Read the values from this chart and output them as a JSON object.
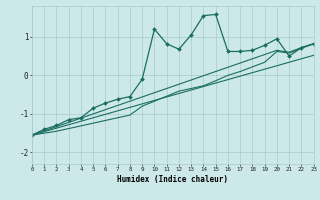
{
  "xlabel": "Humidex (Indice chaleur)",
  "bg_color": "#cce8e8",
  "grid_color": "#aacaca",
  "line_color": "#1a6e60",
  "x_data": [
    0,
    1,
    2,
    3,
    4,
    5,
    6,
    7,
    8,
    9,
    10,
    11,
    12,
    13,
    14,
    15,
    16,
    17,
    18,
    19,
    20,
    21,
    22,
    23
  ],
  "y_curve": [
    -1.55,
    -1.4,
    -1.3,
    -1.15,
    -1.1,
    -0.85,
    -0.72,
    -0.62,
    -0.55,
    -0.1,
    1.2,
    0.82,
    0.68,
    1.05,
    1.55,
    1.58,
    0.62,
    0.62,
    0.65,
    0.78,
    0.95,
    0.5,
    0.72,
    0.82
  ],
  "y_line1": [
    -1.55,
    -1.46,
    -1.37,
    -1.28,
    -1.19,
    -1.1,
    -1.01,
    -0.92,
    -0.83,
    -0.74,
    -0.65,
    -0.56,
    -0.47,
    -0.38,
    -0.29,
    -0.2,
    -0.11,
    -0.02,
    0.07,
    0.16,
    0.25,
    0.34,
    0.43,
    0.52
  ],
  "y_line2": [
    -1.55,
    -1.44,
    -1.33,
    -1.22,
    -1.11,
    -1.0,
    -0.89,
    -0.78,
    -0.67,
    -0.56,
    -0.45,
    -0.34,
    -0.23,
    -0.12,
    -0.01,
    0.1,
    0.21,
    0.32,
    0.43,
    0.54,
    0.65,
    0.6,
    0.72,
    0.82
  ],
  "y_line3": [
    -1.55,
    -1.5,
    -1.45,
    -1.38,
    -1.31,
    -1.24,
    -1.17,
    -1.1,
    -1.03,
    -0.8,
    -0.67,
    -0.54,
    -0.41,
    -0.34,
    -0.27,
    -0.14,
    0.0,
    0.1,
    0.22,
    0.34,
    0.62,
    0.58,
    0.7,
    0.82
  ],
  "xlim": [
    0,
    23
  ],
  "ylim": [
    -2.3,
    1.8
  ],
  "yticks": [
    -2,
    -1,
    0,
    1
  ],
  "xticks": [
    0,
    1,
    2,
    3,
    4,
    5,
    6,
    7,
    8,
    9,
    10,
    11,
    12,
    13,
    14,
    15,
    16,
    17,
    18,
    19,
    20,
    21,
    22,
    23
  ]
}
